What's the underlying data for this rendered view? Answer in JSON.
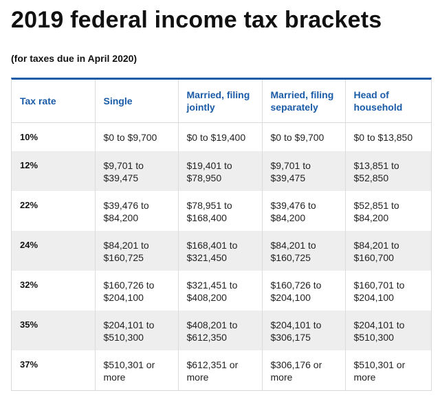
{
  "title": "2019 federal income tax brackets",
  "subtitle": "(for taxes due in April 2020)",
  "table": {
    "headers": [
      "Tax rate",
      "Single",
      "Married, filing jointly",
      "Married, filing separately",
      "Head of household"
    ],
    "rows": [
      [
        "10%",
        "$0 to $9,700",
        "$0 to $19,400",
        "$0 to $9,700",
        "$0 to $13,850"
      ],
      [
        "12%",
        "$9,701 to $39,475",
        "$19,401 to $78,950",
        "$9,701 to $39,475",
        "$13,851 to $52,850"
      ],
      [
        "22%",
        "$39,476 to $84,200",
        "$78,951 to $168,400",
        "$39,476 to $84,200",
        "$52,851 to $84,200"
      ],
      [
        "24%",
        "$84,201 to $160,725",
        "$168,401 to $321,450",
        "$84,201 to $160,725",
        "$84,201 to $160,700"
      ],
      [
        "32%",
        "$160,726 to $204,100",
        "$321,451 to $408,200",
        "$160,726 to $204,100",
        "$160,701 to $204,100"
      ],
      [
        "35%",
        "$204,101 to $510,300",
        "$408,201 to $612,350",
        "$204,101 to $306,175",
        "$204,101 to $510,300"
      ],
      [
        "37%",
        "$510,301 or more",
        "$612,351 or more",
        "$306,176 or more",
        "$510,301 or more"
      ]
    ]
  },
  "colors": {
    "accent": "#1a5ba8",
    "stripe": "#eeeeee"
  }
}
